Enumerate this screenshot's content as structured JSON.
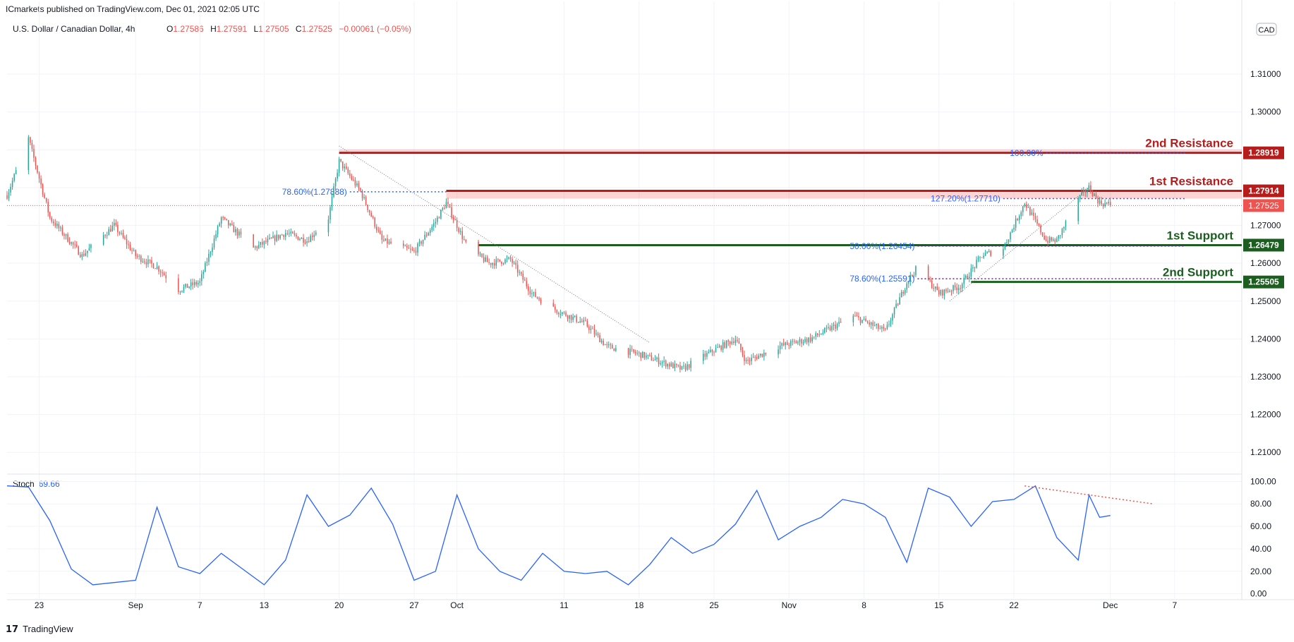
{
  "header": {
    "publisher": "ICmarkets published on TradingView.com, Dec 01, 2021 02:05 UTC",
    "symbol": "U.S. Dollar / Canadian Dollar, 4h",
    "ohlc": [
      {
        "label": "O",
        "value": "1.27586"
      },
      {
        "label": "H",
        "value": "1.27591"
      },
      {
        "label": "L",
        "value": "1.27505"
      },
      {
        "label": "C",
        "value": "1.27525"
      }
    ],
    "change": "−0.00061 (−0.05%)",
    "currency": "CAD"
  },
  "footer": {
    "logo": "𝟭𝟳",
    "brand": "TradingView"
  },
  "colors": {
    "up": "#26a69a",
    "down": "#ef5350",
    "resistance": "#b71c1c",
    "support": "#1b5e20",
    "fib": "#2962ff",
    "stoch": "#2962ff"
  },
  "chart_data": [
    {
      "type": "candlestick",
      "title": "U.S. Dollar / Canadian Dollar, 4h",
      "ylim": [
        1.205,
        1.3255
      ],
      "yticks": [
        "1.31000",
        "1.30000",
        "1.29000",
        "1.28000",
        "1.27000",
        "1.26000",
        "1.25000",
        "1.24000",
        "1.23000",
        "1.22000",
        "1.21000"
      ],
      "xticks": [
        "23",
        "Sep",
        "7",
        "13",
        "20",
        "27",
        "Oct",
        "11",
        "18",
        "25",
        "Nov",
        "8",
        "15",
        "22",
        "Dec",
        "7"
      ],
      "price_path": [
        {
          "date": "2021-08-20",
          "price": 1.278
        },
        {
          "date": "2021-08-22",
          "price": 1.293
        },
        {
          "date": "2021-08-24",
          "price": 1.272
        },
        {
          "date": "2021-08-27",
          "price": 1.262
        },
        {
          "date": "2021-08-30",
          "price": 1.27
        },
        {
          "date": "2021-09-01",
          "price": 1.262
        },
        {
          "date": "2021-09-03",
          "price": 1.259
        },
        {
          "date": "2021-09-05",
          "price": 1.253
        },
        {
          "date": "2021-09-07",
          "price": 1.255
        },
        {
          "date": "2021-09-09",
          "price": 1.272
        },
        {
          "date": "2021-09-12",
          "price": 1.264
        },
        {
          "date": "2021-09-15",
          "price": 1.268
        },
        {
          "date": "2021-09-17",
          "price": 1.266
        },
        {
          "date": "2021-09-19",
          "price": 1.272
        },
        {
          "date": "2021-09-20",
          "price": 1.287
        },
        {
          "date": "2021-09-22",
          "price": 1.279
        },
        {
          "date": "2021-09-24",
          "price": 1.266
        },
        {
          "date": "2021-09-27",
          "price": 1.263
        },
        {
          "date": "2021-09-29",
          "price": 1.271
        },
        {
          "date": "2021-09-30",
          "price": 1.276
        },
        {
          "date": "2021-10-02",
          "price": 1.264
        },
        {
          "date": "2021-10-04",
          "price": 1.26
        },
        {
          "date": "2021-10-06",
          "price": 1.261
        },
        {
          "date": "2021-10-08",
          "price": 1.252
        },
        {
          "date": "2021-10-10",
          "price": 1.248
        },
        {
          "date": "2021-10-13",
          "price": 1.244
        },
        {
          "date": "2021-10-15",
          "price": 1.238
        },
        {
          "date": "2021-10-18",
          "price": 1.236
        },
        {
          "date": "2021-10-20",
          "price": 1.234
        },
        {
          "date": "2021-10-22",
          "price": 1.232
        },
        {
          "date": "2021-10-25",
          "price": 1.237
        },
        {
          "date": "2021-10-27",
          "price": 1.24
        },
        {
          "date": "2021-10-28",
          "price": 1.234
        },
        {
          "date": "2021-10-31",
          "price": 1.238
        },
        {
          "date": "2021-11-03",
          "price": 1.24
        },
        {
          "date": "2021-11-05",
          "price": 1.243
        },
        {
          "date": "2021-11-07",
          "price": 1.246
        },
        {
          "date": "2021-11-10",
          "price": 1.242
        },
        {
          "date": "2021-11-12",
          "price": 1.255
        },
        {
          "date": "2021-11-13",
          "price": 1.259
        },
        {
          "date": "2021-11-15",
          "price": 1.252
        },
        {
          "date": "2021-11-17",
          "price": 1.254
        },
        {
          "date": "2021-11-19",
          "price": 1.262
        },
        {
          "date": "2021-11-21",
          "price": 1.264
        },
        {
          "date": "2021-11-23",
          "price": 1.276
        },
        {
          "date": "2021-11-25",
          "price": 1.266
        },
        {
          "date": "2021-11-26",
          "price": 1.266
        },
        {
          "date": "2021-11-28",
          "price": 1.277
        },
        {
          "date": "2021-11-29",
          "price": 1.28
        },
        {
          "date": "2021-11-30",
          "price": 1.276
        },
        {
          "date": "2021-12-01",
          "price": 1.2755
        }
      ],
      "current_price": {
        "value": 1.27525,
        "label": "1.27525"
      },
      "levels": [
        {
          "name": "2nd Resistance",
          "price": 1.28919,
          "label": "1.28919",
          "kind": "resistance",
          "from": "2021-09-20"
        },
        {
          "name": "1st Resistance",
          "price": 1.27914,
          "label": "1.27914",
          "kind": "resistance",
          "from": "2021-09-30",
          "zone_low": 1.2771
        },
        {
          "name": "1st Support",
          "price": 1.26479,
          "label": "1.26479",
          "kind": "support",
          "from": "2021-10-03"
        },
        {
          "name": "2nd Support",
          "price": 1.25505,
          "label": "1.25505",
          "kind": "support",
          "from": "2021-11-18"
        }
      ],
      "fib_labels": [
        {
          "text": "78.60%(1.27888)",
          "price": 1.27888,
          "from": "2021-09-21",
          "to": "2021-09-30"
        },
        {
          "text": "100.00%",
          "price": 1.2891,
          "from": "2021-11-25",
          "to": "2021-12-08"
        },
        {
          "text": "127.20%(1.27710)",
          "price": 1.2771,
          "from": "2021-11-21",
          "to": "2021-12-08"
        },
        {
          "text": "50.00%(1.26454)",
          "price": 1.26454,
          "from": "2021-11-13",
          "to": "2021-12-08"
        },
        {
          "text": "78.60%(1.25591)",
          "price": 1.25591,
          "from": "2021-11-13",
          "to": "2021-12-08"
        }
      ]
    },
    {
      "type": "line",
      "title": "Stoch",
      "value_label": "69.66",
      "ylim": [
        -4,
        104
      ],
      "yticks": [
        "100.00",
        "80.00",
        "60.00",
        "40.00",
        "20.00",
        "0.00"
      ],
      "series": [
        {
          "values": [
            {
              "date": "2021-08-20",
              "k": 96
            },
            {
              "date": "2021-08-22",
              "k": 95
            },
            {
              "date": "2021-08-24",
              "k": 65
            },
            {
              "date": "2021-08-26",
              "k": 22
            },
            {
              "date": "2021-08-28",
              "k": 8
            },
            {
              "date": "2021-08-30",
              "k": 10
            },
            {
              "date": "2021-09-01",
              "k": 12
            },
            {
              "date": "2021-09-03",
              "k": 77
            },
            {
              "date": "2021-09-05",
              "k": 24
            },
            {
              "date": "2021-09-07",
              "k": 18
            },
            {
              "date": "2021-09-09",
              "k": 36
            },
            {
              "date": "2021-09-11",
              "k": 22
            },
            {
              "date": "2021-09-13",
              "k": 8
            },
            {
              "date": "2021-09-15",
              "k": 30
            },
            {
              "date": "2021-09-17",
              "k": 88
            },
            {
              "date": "2021-09-19",
              "k": 60
            },
            {
              "date": "2021-09-21",
              "k": 70
            },
            {
              "date": "2021-09-23",
              "k": 94
            },
            {
              "date": "2021-09-25",
              "k": 62
            },
            {
              "date": "2021-09-27",
              "k": 12
            },
            {
              "date": "2021-09-29",
              "k": 20
            },
            {
              "date": "2021-10-01",
              "k": 88
            },
            {
              "date": "2021-10-03",
              "k": 40
            },
            {
              "date": "2021-10-05",
              "k": 20
            },
            {
              "date": "2021-10-07",
              "k": 12
            },
            {
              "date": "2021-10-09",
              "k": 36
            },
            {
              "date": "2021-10-11",
              "k": 20
            },
            {
              "date": "2021-10-13",
              "k": 18
            },
            {
              "date": "2021-10-15",
              "k": 20
            },
            {
              "date": "2021-10-17",
              "k": 8
            },
            {
              "date": "2021-10-19",
              "k": 26
            },
            {
              "date": "2021-10-21",
              "k": 50
            },
            {
              "date": "2021-10-23",
              "k": 36
            },
            {
              "date": "2021-10-25",
              "k": 44
            },
            {
              "date": "2021-10-27",
              "k": 62
            },
            {
              "date": "2021-10-29",
              "k": 92
            },
            {
              "date": "2021-10-31",
              "k": 48
            },
            {
              "date": "2021-11-02",
              "k": 60
            },
            {
              "date": "2021-11-04",
              "k": 68
            },
            {
              "date": "2021-11-06",
              "k": 84
            },
            {
              "date": "2021-11-08",
              "k": 80
            },
            {
              "date": "2021-11-10",
              "k": 68
            },
            {
              "date": "2021-11-12",
              "k": 28
            },
            {
              "date": "2021-11-14",
              "k": 94
            },
            {
              "date": "2021-11-16",
              "k": 86
            },
            {
              "date": "2021-11-18",
              "k": 60
            },
            {
              "date": "2021-11-20",
              "k": 82
            },
            {
              "date": "2021-11-22",
              "k": 84
            },
            {
              "date": "2021-11-24",
              "k": 96
            },
            {
              "date": "2021-11-26",
              "k": 50
            },
            {
              "date": "2021-11-28",
              "k": 30
            },
            {
              "date": "2021-11-29",
              "k": 88
            },
            {
              "date": "2021-11-30",
              "k": 68
            },
            {
              "date": "2021-12-01",
              "k": 69.66
            }
          ]
        }
      ],
      "divergence_line": [
        {
          "date": "2021-11-23",
          "k": 96
        },
        {
          "date": "2021-12-05",
          "k": 80
        }
      ]
    }
  ]
}
